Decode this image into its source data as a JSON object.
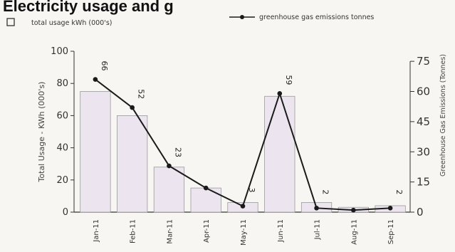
{
  "chart_data": {
    "type": "bar",
    "title": "Electricity usage and g",
    "categories": [
      "Jan-11",
      "Feb-11",
      "Mar-11",
      "Apr-11",
      "May-11",
      "Jun-11",
      "Jul-11",
      "Aug-11",
      "Sep-11"
    ],
    "series": [
      {
        "name": "total usage  kWh (000's)",
        "type": "bar",
        "axis": "left",
        "values": [
          75,
          60,
          28,
          15,
          6,
          72,
          6,
          3,
          4
        ]
      },
      {
        "name": "greenhouse gas emissions tonnes",
        "type": "line",
        "axis": "right",
        "values": [
          66,
          52,
          23,
          12,
          3,
          59,
          2,
          1,
          2
        ],
        "data_labels": [
          "66",
          "52",
          "23",
          "",
          "3",
          "59",
          "2",
          "",
          "2"
        ]
      }
    ],
    "ylabel": "Total Usage - KWh (000's)",
    "ylim": [
      0,
      100
    ],
    "yticks": [
      0,
      20,
      40,
      60,
      80,
      100
    ],
    "y2label": "Greenhouse Gas Emissions (Tonnes)",
    "y2lim": [
      0,
      80
    ],
    "y2ticks": [
      0,
      15,
      30,
      45,
      60,
      75
    ],
    "grid": false,
    "legend": "top",
    "colors": {
      "bar_fill": "#ece4ee",
      "bar_stroke": "#9a9a9a",
      "line": "#1a1a1a",
      "axis": "#333333"
    }
  }
}
